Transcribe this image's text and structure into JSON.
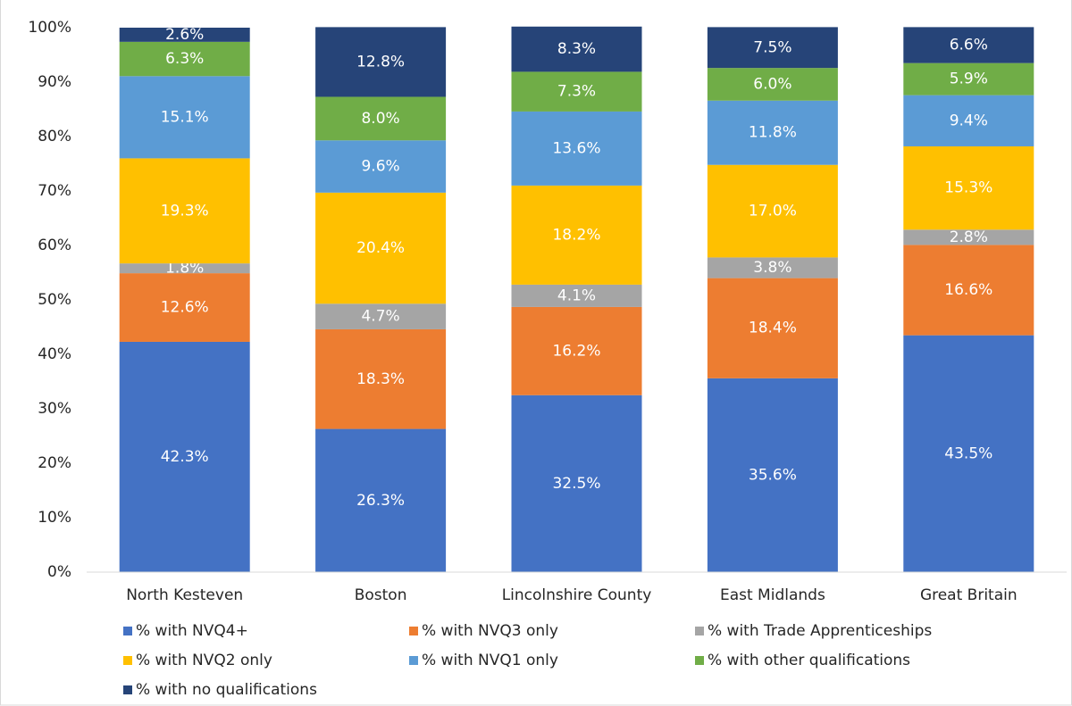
{
  "chart_data": {
    "type": "stacked_bar",
    "categories": [
      "North Kesteven",
      "Boston",
      "Lincolnshire County",
      "East Midlands",
      "Great Britain"
    ],
    "series": [
      {
        "name": "% with NVQ4+",
        "color": "#4472c4",
        "values": [
          42.3,
          26.3,
          32.5,
          35.6,
          43.5
        ],
        "value_labels": [
          "42.3%",
          "26.3%",
          "32.5%",
          "35.6%",
          "43.5%"
        ]
      },
      {
        "name": "% with NVQ3 only",
        "color": "#ed7d31",
        "values": [
          12.6,
          18.3,
          16.2,
          18.4,
          16.6
        ],
        "value_labels": [
          "12.6%",
          "18.3%",
          "16.2%",
          "18.4%",
          "16.6%"
        ]
      },
      {
        "name": "% with Trade Apprenticeships",
        "color": "#a5a5a5",
        "values": [
          1.8,
          4.7,
          4.1,
          3.8,
          2.8
        ],
        "value_labels": [
          "1.8%",
          "4.7%",
          "4.1%",
          "3.8%",
          "2.8%"
        ]
      },
      {
        "name": "% with NVQ2 only",
        "color": "#ffc000",
        "values": [
          19.3,
          20.4,
          18.2,
          17.0,
          15.3
        ],
        "value_labels": [
          "19.3%",
          "20.4%",
          "18.2%",
          "17.0%",
          "15.3%"
        ]
      },
      {
        "name": "% with NVQ1 only",
        "color": "#5b9bd5",
        "values": [
          15.1,
          9.6,
          13.6,
          11.8,
          9.4
        ],
        "value_labels": [
          "15.1%",
          "9.6%",
          "13.6%",
          "11.8%",
          "9.4%"
        ]
      },
      {
        "name": "% with other qualifications",
        "color": "#70ad47",
        "values": [
          6.3,
          8.0,
          7.3,
          6.0,
          5.9
        ],
        "value_labels": [
          "6.3%",
          "8.0%",
          "7.3%",
          "6.0%",
          "5.9%"
        ]
      },
      {
        "name": "% with no qualifications",
        "color": "#264478",
        "values": [
          2.6,
          12.8,
          8.3,
          7.5,
          6.6
        ],
        "value_labels": [
          "2.6%",
          "12.8%",
          "8.3%",
          "7.5%",
          "6.6%"
        ]
      }
    ],
    "ylim": [
      0,
      100
    ],
    "yticks": [
      {
        "value": 0,
        "label": "0%"
      },
      {
        "value": 10,
        "label": "10%"
      },
      {
        "value": 20,
        "label": "20%"
      },
      {
        "value": 30,
        "label": "30%"
      },
      {
        "value": 40,
        "label": "40%"
      },
      {
        "value": 50,
        "label": "50%"
      },
      {
        "value": 60,
        "label": "60%"
      },
      {
        "value": 70,
        "label": "70%"
      },
      {
        "value": 80,
        "label": "80%"
      },
      {
        "value": 90,
        "label": "90%"
      },
      {
        "value": 100,
        "label": "100%"
      }
    ],
    "grid": false,
    "legend": "bottom"
  }
}
